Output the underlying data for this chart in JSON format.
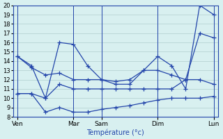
{
  "title": "",
  "xlabel": "Température (°c)",
  "ylabel": "",
  "bg_color": "#d8f0f0",
  "line_color": "#2244aa",
  "grid_color": "#b0cece",
  "ylim": [
    8,
    20
  ],
  "yticks": [
    8,
    9,
    10,
    11,
    12,
    13,
    14,
    15,
    16,
    17,
    18,
    19,
    20
  ],
  "x_tick_positions": [
    0,
    4,
    6,
    10,
    14
  ],
  "x_tick_labels": [
    "Ven",
    "Mar",
    "Sam",
    "Dim",
    "Lun"
  ],
  "x_vlines": [
    0,
    4,
    6,
    10,
    14
  ],
  "lines": [
    {
      "x": [
        0,
        1,
        2,
        3,
        4,
        5,
        6,
        7,
        8,
        9,
        10,
        11,
        12,
        13,
        14
      ],
      "y": [
        14.5,
        13.5,
        10.0,
        16.0,
        15.8,
        13.5,
        12.0,
        11.5,
        11.5,
        13.0,
        14.5,
        13.5,
        11.0,
        20.0,
        19.0
      ]
    },
    {
      "x": [
        0,
        1,
        2,
        3,
        4,
        5,
        6,
        7,
        8,
        9,
        10,
        11,
        12,
        13,
        14
      ],
      "y": [
        14.5,
        13.3,
        12.5,
        12.7,
        12.0,
        12.0,
        12.0,
        11.8,
        12.0,
        13.0,
        13.0,
        12.5,
        12.0,
        17.0,
        16.5
      ]
    },
    {
      "x": [
        0,
        1,
        2,
        3,
        4,
        5,
        6,
        7,
        8,
        9,
        10,
        11,
        12,
        13,
        14
      ],
      "y": [
        10.5,
        10.5,
        10.0,
        11.5,
        11.0,
        11.0,
        11.0,
        11.0,
        11.0,
        11.0,
        11.0,
        11.0,
        12.0,
        12.0,
        11.5
      ]
    },
    {
      "x": [
        0,
        1,
        2,
        3,
        4,
        5,
        6,
        7,
        8,
        9,
        10,
        11,
        12,
        13,
        14
      ],
      "y": [
        10.5,
        10.5,
        8.5,
        9.0,
        8.5,
        8.5,
        8.8,
        9.0,
        9.2,
        9.5,
        9.8,
        10.0,
        10.0,
        10.0,
        10.2
      ]
    }
  ]
}
